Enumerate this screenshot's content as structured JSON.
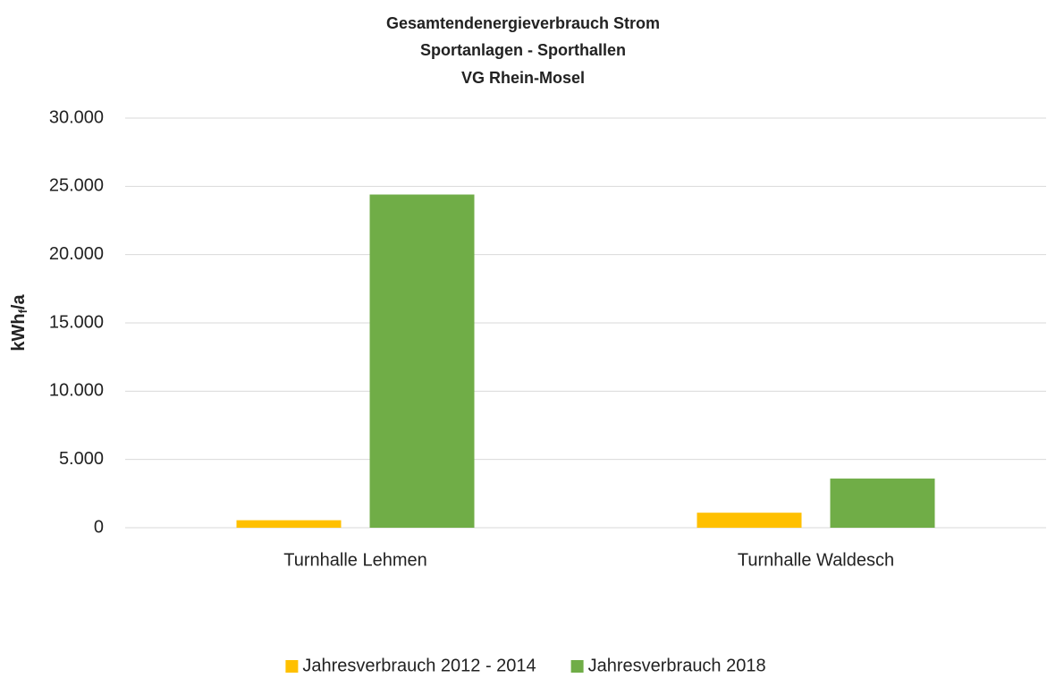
{
  "chart_data": {
    "type": "bar",
    "title": [
      "Gesamtendenergieverbrauch Strom",
      "Sportanlagen - Sporthallen",
      "VG Rhein-Mosel"
    ],
    "y_label": [
      "kWh",
      "f",
      "/a"
    ],
    "categories": [
      "Turnhalle Lehmen",
      "Turnhalle Waldesch"
    ],
    "series": [
      {
        "name": "Jahresverbrauch 2012 - 2014",
        "color": "#ffc000",
        "values": [
          550,
          1100
        ]
      },
      {
        "name": "Jahresverbrauch 2018",
        "color": "#70ad47",
        "values": [
          24400,
          3600
        ]
      }
    ],
    "ylim": [
      0,
      30000
    ],
    "yticks": [
      0,
      {
        "value": 5000,
        "label": "5.000"
      },
      {
        "value": 10000,
        "label": "10.000"
      },
      {
        "value": 15000,
        "label": "15.000"
      },
      {
        "value": 20000,
        "label": "20.000"
      },
      {
        "value": 25000,
        "label": "25.000"
      },
      {
        "value": 30000,
        "label": "30.000"
      }
    ],
    "grid": true,
    "legend": "bottom"
  }
}
